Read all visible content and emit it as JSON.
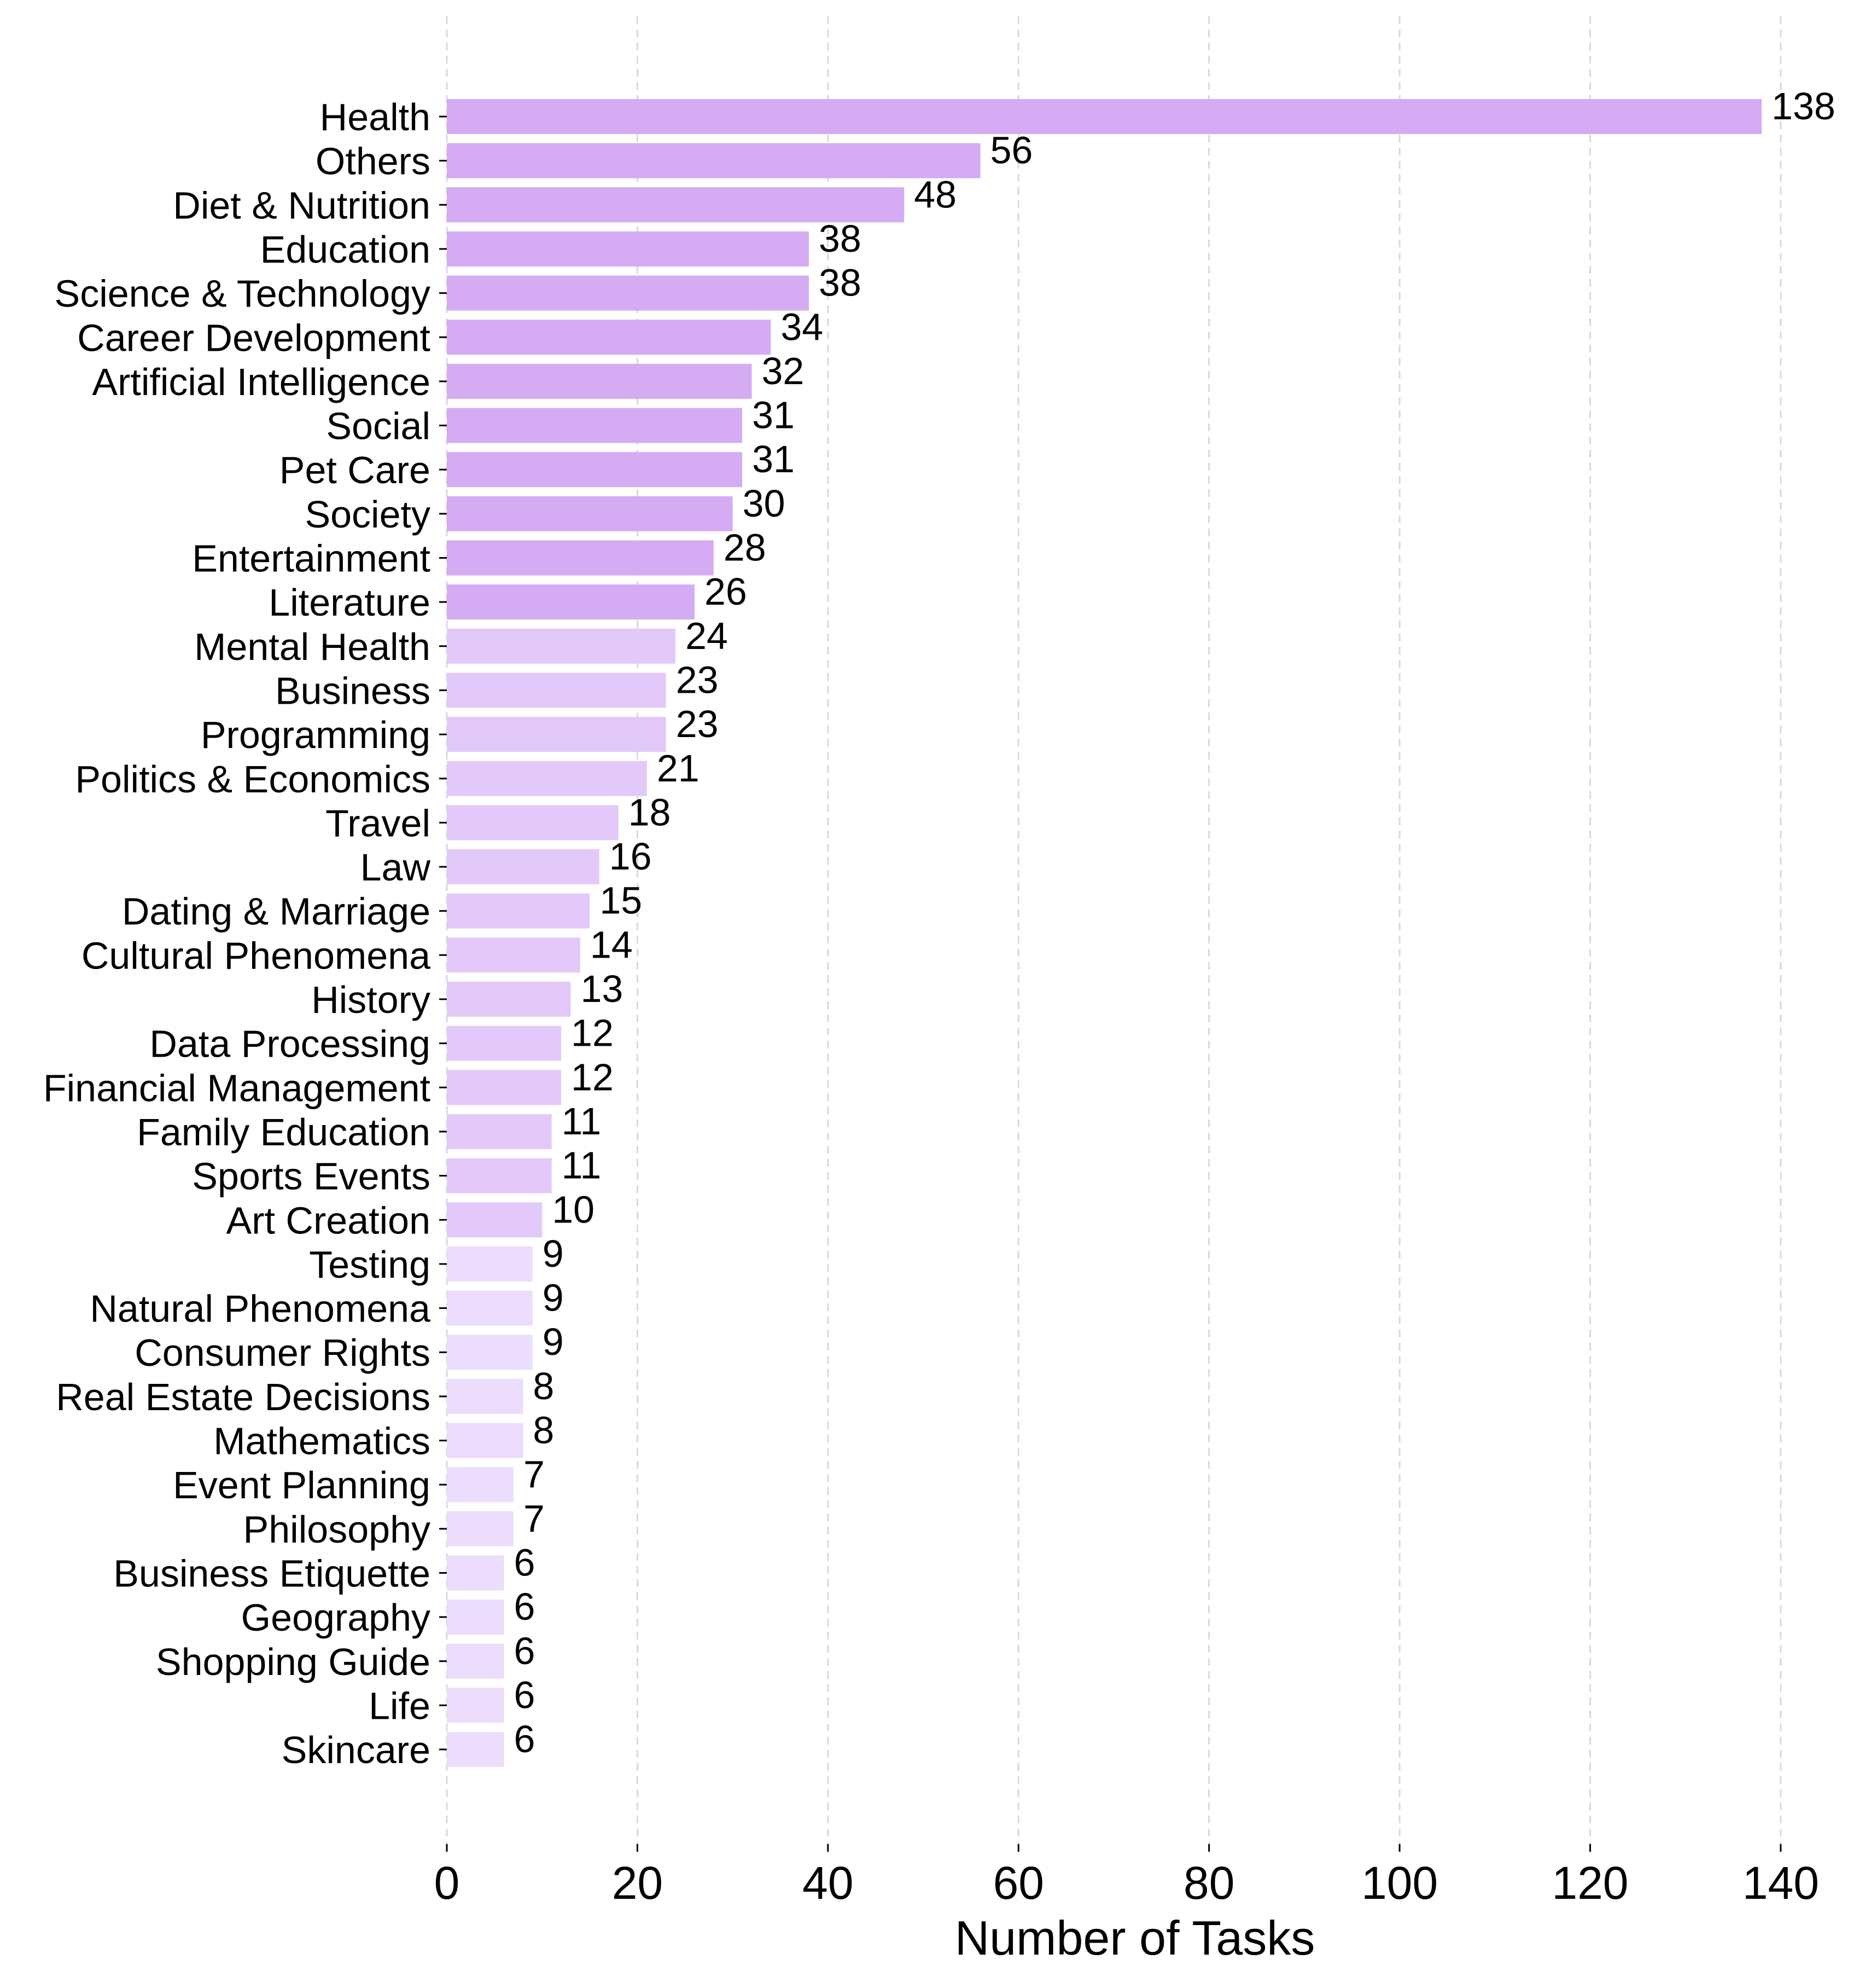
{
  "chart_data": {
    "type": "bar",
    "orientation": "horizontal",
    "title": "",
    "xlabel": "Number of Tasks",
    "ylabel": "",
    "xlim": [
      0,
      143
    ],
    "xticks": [
      0,
      20,
      40,
      60,
      80,
      100,
      120,
      140
    ],
    "grid": "x, dashed",
    "legend": "none",
    "colors": {
      "high": "#D5ABF3",
      "mid": "#E3C9FA",
      "low": "#EBDDFB"
    },
    "categories": [
      "Health",
      "Others",
      "Diet & Nutrition",
      "Education",
      "Science & Technology",
      "Career Development",
      "Artificial Intelligence",
      "Social",
      "Pet Care",
      "Society",
      "Entertainment",
      "Literature",
      "Mental Health",
      "Business",
      "Programming",
      "Politics & Economics",
      "Travel",
      "Law",
      "Dating & Marriage",
      "Cultural Phenomena",
      "History",
      "Data Processing",
      "Financial Management",
      "Family Education",
      "Sports Events",
      "Art Creation",
      "Testing",
      "Natural Phenomena",
      "Consumer Rights",
      "Real Estate Decisions",
      "Mathematics",
      "Event Planning",
      "Philosophy",
      "Business Etiquette",
      "Geography",
      "Shopping Guide",
      "Life",
      "Skincare"
    ],
    "values": [
      138,
      56,
      48,
      38,
      38,
      34,
      32,
      31,
      31,
      30,
      28,
      26,
      24,
      23,
      23,
      21,
      18,
      16,
      15,
      14,
      13,
      12,
      12,
      11,
      11,
      10,
      9,
      9,
      9,
      8,
      8,
      7,
      7,
      6,
      6,
      6,
      6,
      6
    ],
    "value_labels": [
      "138",
      "56",
      "48",
      "38",
      "38",
      "34",
      "32",
      "31",
      "31",
      "30",
      "28",
      "26",
      "24",
      "23",
      "23",
      "21",
      "18",
      "16",
      "15",
      "14",
      "13",
      "12",
      "12",
      "11",
      "11",
      "10",
      "9",
      "9",
      "9",
      "8",
      "8",
      "7",
      "7",
      "6",
      "6",
      "6",
      "6",
      "6"
    ],
    "tick_labels": [
      "0",
      "20",
      "40",
      "60",
      "80",
      "100",
      "120",
      "140"
    ]
  }
}
